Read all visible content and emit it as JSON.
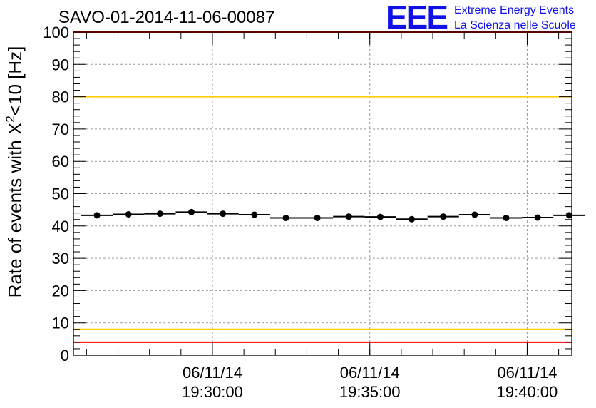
{
  "colors": {
    "red_threshold": "#ff0000",
    "yellow_threshold": "#ffcc00",
    "data": "#000000",
    "grid": "#999999",
    "logo": "#1010e8"
  },
  "logo": {
    "mark": "EEE",
    "line1": "Extreme Energy Events",
    "line2": "La Scienza nelle Scuole"
  },
  "chart_data": {
    "type": "scatter",
    "title": "SAVO-01-2014-11-06-00087",
    "ylabel_main": "Rate of events with X",
    "ylabel_sup": "2",
    "ylabel_tail": "<10 [Hz]",
    "ylim": [
      0,
      100
    ],
    "yticks": [
      "0",
      "10",
      "20",
      "30",
      "40",
      "50",
      "60",
      "70",
      "80",
      "90",
      "100"
    ],
    "xlim": [
      "19:25:35",
      "19:41:25"
    ],
    "xticks": [
      {
        "date": "06/11/14",
        "time": "19:30:00"
      },
      {
        "date": "06/11/14",
        "time": "19:35:00"
      },
      {
        "date": "06/11/14",
        "time": "19:40:00"
      }
    ],
    "bin_width_s": 60,
    "grid": true,
    "thresholds": [
      {
        "value": 100,
        "color": "red"
      },
      {
        "value": 80,
        "color": "yellow"
      },
      {
        "value": 8,
        "color": "yellow"
      },
      {
        "value": 4,
        "color": "red"
      }
    ],
    "series": [
      {
        "x": [
          "19:26:20",
          "19:27:20",
          "19:28:20",
          "19:29:20",
          "19:30:20",
          "19:31:20",
          "19:32:20",
          "19:33:20",
          "19:34:20",
          "19:35:20",
          "19:36:20",
          "19:37:20",
          "19:38:20",
          "19:39:20",
          "19:40:20",
          "19:41:20"
        ],
        "y": [
          43.3,
          43.6,
          43.8,
          44.3,
          43.8,
          43.5,
          42.5,
          42.5,
          42.9,
          42.8,
          42.1,
          42.9,
          43.5,
          42.5,
          42.6,
          43.3
        ]
      }
    ]
  }
}
